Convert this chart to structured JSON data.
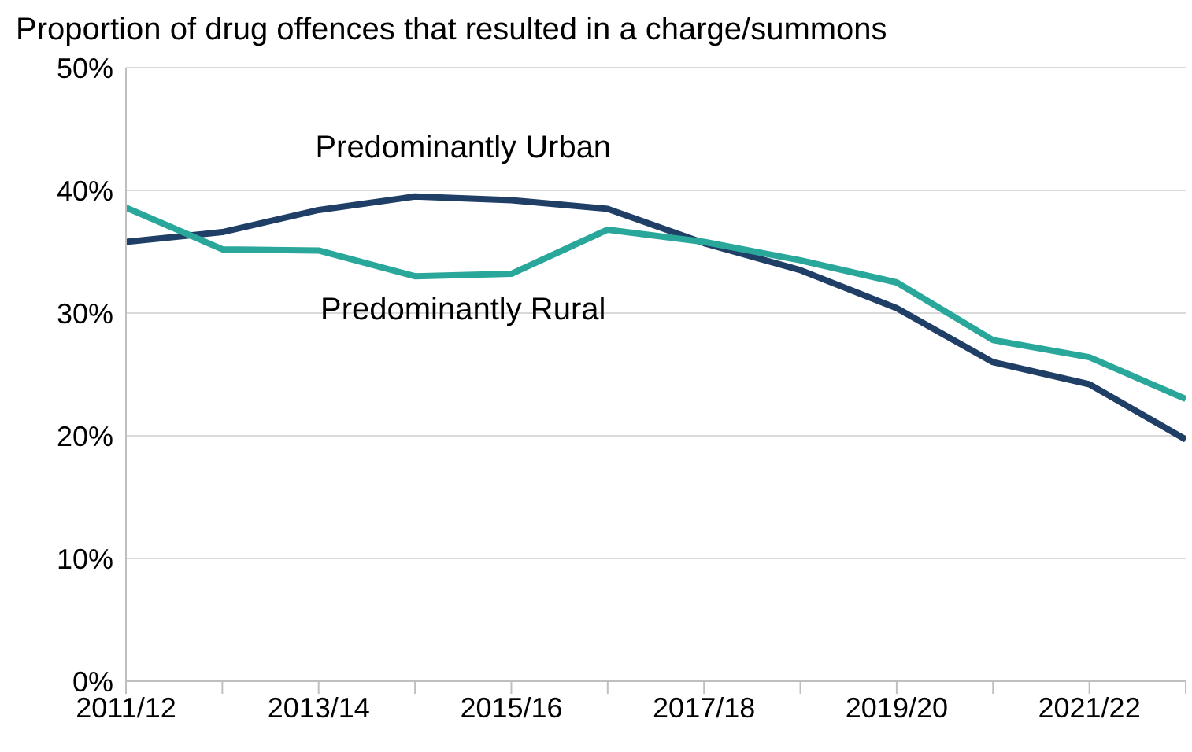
{
  "chart_data": {
    "type": "line",
    "title": "Proportion of drug offences that resulted in a charge/summons",
    "categories": [
      "2011/12",
      null,
      "2013/14",
      null,
      "2015/16",
      null,
      "2017/18",
      null,
      "2019/20",
      null,
      "2021/22",
      null
    ],
    "series": [
      {
        "name": "Predominantly Urban",
        "color": "#1f3f66",
        "values": [
          35.8,
          36.6,
          38.4,
          39.5,
          39.2,
          38.5,
          35.7,
          33.5,
          30.4,
          26.0,
          24.2,
          19.7
        ]
      },
      {
        "name": "Predominantly Rural",
        "color": "#2aa79b",
        "values": [
          38.6,
          35.2,
          35.1,
          33.0,
          33.2,
          36.8,
          35.8,
          34.3,
          32.5,
          27.8,
          26.4,
          23.0
        ]
      }
    ],
    "ylim": [
      0,
      50
    ],
    "yticks": [
      {
        "value": 0,
        "label": "0%"
      },
      {
        "value": 10,
        "label": "10%"
      },
      {
        "value": 20,
        "label": "20%"
      },
      {
        "value": 30,
        "label": "30%"
      },
      {
        "value": 40,
        "label": "40%"
      },
      {
        "value": 50,
        "label": "50%"
      }
    ],
    "grid": "y",
    "legend": false,
    "marker": "none",
    "line_style": "solid"
  }
}
